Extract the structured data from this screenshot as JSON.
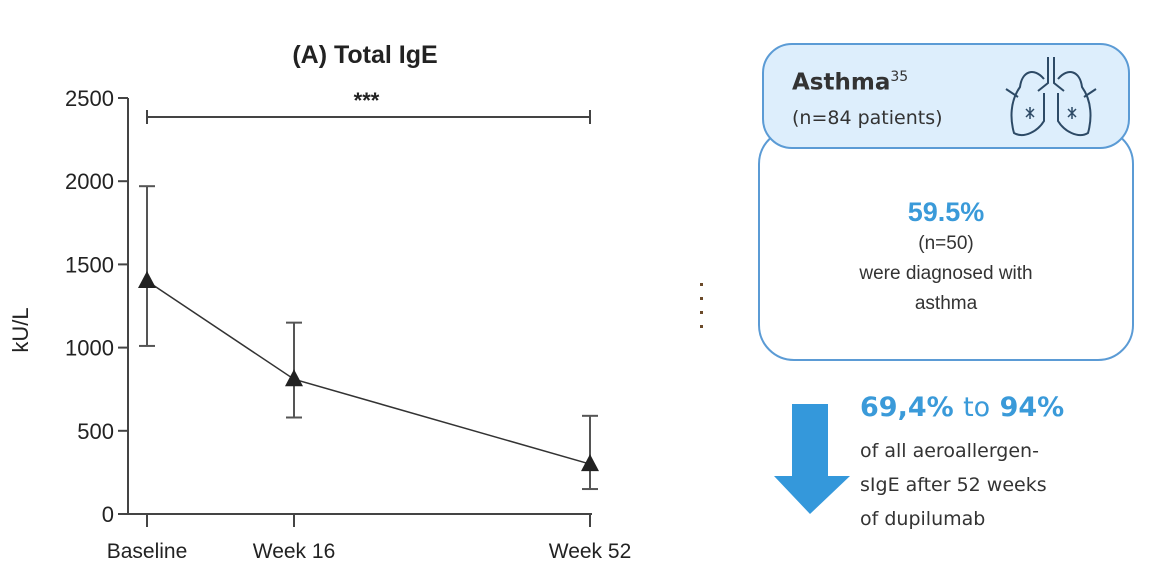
{
  "chart_data": {
    "type": "line",
    "title": "(A) Total IgE",
    "xlabel": "",
    "ylabel": "kU/L",
    "categories": [
      "Baseline",
      "Week 16",
      "Week 52"
    ],
    "values": [
      1400,
      810,
      300
    ],
    "error_low": [
      1010,
      580,
      150
    ],
    "error_high": [
      1970,
      1150,
      590
    ],
    "ylim": [
      0,
      2500
    ],
    "yticks": [
      0,
      500,
      1000,
      1500,
      2000,
      2500
    ],
    "marker": "triangle",
    "grid": false,
    "significance": {
      "from": "Baseline",
      "to": "Week 52",
      "label": "***"
    },
    "color": "#222222"
  },
  "infographic": {
    "header": {
      "title": "Asthma",
      "superscript": "35",
      "subtitle": "(n=84 patients)",
      "icon": "lungs-icon"
    },
    "body": {
      "percent": "59.5%",
      "count": "(n=50)",
      "line1": "were diagnosed with",
      "line2": "asthma"
    },
    "reduction": {
      "from": "69,4%",
      "to_word": "to",
      "to": "94%",
      "line1": "of all aeroallergen-",
      "line2": "sIgE after 52 weeks",
      "line3": "of dupilumab",
      "icon": "down-arrow-icon"
    },
    "colors": {
      "accent": "#3a9ad9",
      "border": "#5b9bd5",
      "header_fill": "#ddeefc",
      "arrow": "#3498db"
    }
  }
}
